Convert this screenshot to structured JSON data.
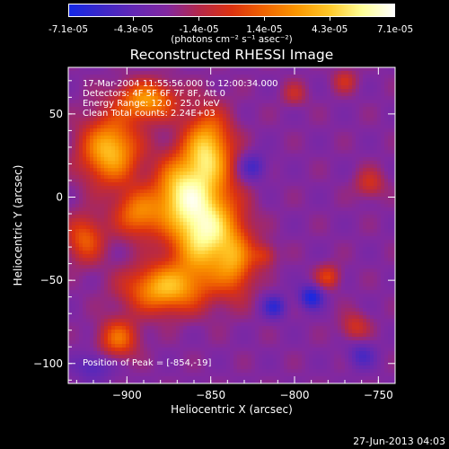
{
  "colorbar": {
    "ticks": [
      "-7.1e-05",
      "-4.3e-05",
      "-1.4e-05",
      "1.4e-05",
      "4.3e-05",
      "7.1e-05"
    ],
    "unit": "(photons cm⁻² s⁻¹ asec⁻²)",
    "colors": [
      "#1428e6",
      "#3c28c8",
      "#6428b4",
      "#8228a0",
      "#b4284a",
      "#dc3210",
      "#f06400",
      "#fa9600",
      "#ffc828",
      "#ffff96",
      "#ffffff"
    ]
  },
  "title": "Reconstructed RHESSI Image",
  "annotations": [
    "17-Mar-2004 11:55:56.000 to 12:00:34.000",
    "Detectors: 4F 5F 6F 7F 8F, Att 0",
    "Energy Range: 12.0 - 25.0 keV",
    "Clean     Total counts: 2.24E+03"
  ],
  "peak_label": "Position of Peak = [-854,-19]",
  "footer": "27-Jun-2013 04:03",
  "chart_data": {
    "type": "heatmap",
    "title": "Reconstructed RHESSI Image",
    "xlabel": "Heliocentric X (arcsec)",
    "ylabel": "Heliocentric Y (arcsec)",
    "xlim": [
      -935,
      -740
    ],
    "ylim": [
      -112,
      78
    ],
    "xticks": [
      -900,
      -850,
      -800,
      -750
    ],
    "yticks": [
      50,
      0,
      -50,
      -100
    ],
    "xtick_labels": [
      "−900",
      "−850",
      "−800",
      "−750"
    ],
    "ytick_labels": [
      "50",
      "0",
      "−50",
      "−100"
    ],
    "value_range": [
      -7.1e-05,
      7.1e-05
    ],
    "peak": {
      "x": -854,
      "y": -19
    },
    "sources": [
      {
        "x": -854,
        "y": -19,
        "sx": 14,
        "sy": 20,
        "amp": 1.0
      },
      {
        "x": -878,
        "y": -55,
        "sx": 16,
        "sy": 10,
        "amp": 0.72
      },
      {
        "x": -910,
        "y": 28,
        "sx": 12,
        "sy": 14,
        "amp": 0.78
      },
      {
        "x": -888,
        "y": 58,
        "sx": 12,
        "sy": 8,
        "amp": 0.65
      },
      {
        "x": -852,
        "y": 28,
        "sx": 10,
        "sy": 16,
        "amp": 0.8
      },
      {
        "x": -870,
        "y": 5,
        "sx": 10,
        "sy": 14,
        "amp": 0.6
      },
      {
        "x": -925,
        "y": -25,
        "sx": 8,
        "sy": 10,
        "amp": 0.45
      },
      {
        "x": -905,
        "y": -85,
        "sx": 8,
        "sy": 8,
        "amp": 0.5
      },
      {
        "x": -835,
        "y": -40,
        "sx": 8,
        "sy": 14,
        "amp": 0.45
      },
      {
        "x": -893,
        "y": -10,
        "sx": 10,
        "sy": 10,
        "amp": 0.55
      },
      {
        "x": -780,
        "y": -48,
        "sx": 5,
        "sy": 5,
        "amp": 0.35
      },
      {
        "x": -818,
        "y": -35,
        "sx": 5,
        "sy": 5,
        "amp": 0.28
      },
      {
        "x": -755,
        "y": 8,
        "sx": 6,
        "sy": 6,
        "amp": 0.28
      },
      {
        "x": -764,
        "y": -78,
        "sx": 6,
        "sy": 6,
        "amp": 0.28
      },
      {
        "x": -770,
        "y": 70,
        "sx": 5,
        "sy": 5,
        "amp": 0.25
      },
      {
        "x": -800,
        "y": 62,
        "sx": 5,
        "sy": 5,
        "amp": 0.22
      },
      {
        "x": -790,
        "y": -60,
        "sx": 5,
        "sy": 5,
        "amp": -0.45
      },
      {
        "x": -812,
        "y": -66,
        "sx": 5,
        "sy": 5,
        "amp": -0.35
      },
      {
        "x": -825,
        "y": 18,
        "sx": 6,
        "sy": 6,
        "amp": -0.3
      },
      {
        "x": -760,
        "y": -95,
        "sx": 6,
        "sy": 6,
        "amp": -0.25
      },
      {
        "x": -920,
        "y": -102,
        "sx": 8,
        "sy": 6,
        "amp": -0.25
      }
    ]
  }
}
